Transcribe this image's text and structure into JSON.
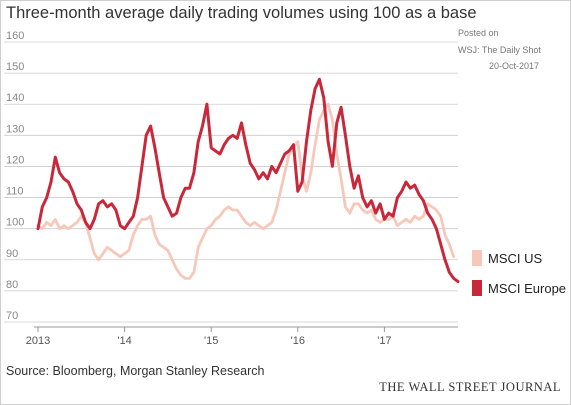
{
  "header": {
    "title": "Three-month average daily trading volumes using 100 as a base",
    "posted_on": "Posted on",
    "posted_source": "WSJ: The Daily Shot",
    "posted_date": "20-Oct-2017"
  },
  "footer": {
    "source": "Source: Bloomberg, Morgan Stanley Research",
    "publisher": "THE WALL STREET JOURNAL"
  },
  "colors": {
    "msci_us": "#f7c8b9",
    "msci_europe": "#c8283a",
    "grid": "#cccccc",
    "axis_text": "#888888"
  },
  "chart_data": {
    "type": "line",
    "title": "Three-month average daily trading volumes using 100 as a base",
    "xlabel": "",
    "ylabel": "",
    "xlim": [
      2013.0,
      2017.85
    ],
    "ylim": [
      70,
      160
    ],
    "yticks": [
      70,
      80,
      90,
      100,
      110,
      120,
      130,
      140,
      150,
      160
    ],
    "ytick_labels": [
      "70",
      "80",
      "90",
      "100",
      "110",
      "120",
      "130",
      "140",
      "150",
      "160"
    ],
    "xticks": [
      2013,
      2014,
      2015,
      2016,
      2017
    ],
    "xtick_labels": [
      "2013",
      "'14",
      "'15",
      "'16",
      "'17"
    ],
    "grid": true,
    "legend_position": "right",
    "series": [
      {
        "name": "MSCI US",
        "color": "#f7c8b9",
        "x": [
          2013.0,
          2013.05,
          2013.1,
          2013.15,
          2013.2,
          2013.25,
          2013.3,
          2013.35,
          2013.4,
          2013.45,
          2013.5,
          2013.55,
          2013.6,
          2013.65,
          2013.7,
          2013.75,
          2013.8,
          2013.85,
          2013.9,
          2013.95,
          2014.0,
          2014.05,
          2014.1,
          2014.15,
          2014.2,
          2014.25,
          2014.3,
          2014.35,
          2014.4,
          2014.45,
          2014.5,
          2014.55,
          2014.6,
          2014.65,
          2014.7,
          2014.75,
          2014.8,
          2014.85,
          2014.9,
          2014.95,
          2015.0,
          2015.05,
          2015.1,
          2015.15,
          2015.2,
          2015.25,
          2015.3,
          2015.35,
          2015.4,
          2015.45,
          2015.5,
          2015.55,
          2015.6,
          2015.65,
          2015.7,
          2015.75,
          2015.8,
          2015.85,
          2015.9,
          2015.95,
          2016.0,
          2016.05,
          2016.1,
          2016.15,
          2016.2,
          2016.25,
          2016.3,
          2016.35,
          2016.4,
          2016.45,
          2016.5,
          2016.55,
          2016.6,
          2016.65,
          2016.7,
          2016.75,
          2016.8,
          2016.85,
          2016.9,
          2016.95,
          2017.0,
          2017.05,
          2017.1,
          2017.15,
          2017.2,
          2017.25,
          2017.3,
          2017.35,
          2017.4,
          2017.45,
          2017.5,
          2017.55,
          2017.6,
          2017.65,
          2017.7,
          2017.75,
          2017.8
        ],
        "y": [
          101,
          100,
          102,
          101,
          103,
          100,
          101,
          100,
          101,
          102,
          104,
          102,
          97,
          92,
          90,
          92,
          94,
          93,
          92,
          91,
          92,
          93,
          98,
          101,
          103,
          103,
          104,
          98,
          95,
          94,
          93,
          90,
          87,
          85,
          84,
          84,
          86,
          94,
          97,
          100,
          101,
          103,
          104,
          106,
          107,
          106,
          106,
          104,
          102,
          101,
          102,
          101,
          100,
          101,
          102,
          106,
          112,
          118,
          124,
          126,
          128,
          117,
          112,
          118,
          127,
          135,
          138,
          140,
          135,
          124,
          116,
          107,
          105,
          108,
          108,
          106,
          105,
          106,
          103,
          102,
          103,
          103,
          104,
          101,
          102,
          103,
          102,
          104,
          103,
          104,
          108,
          107,
          106,
          104,
          98,
          95,
          91
        ]
      },
      {
        "name": "MSCI Europe",
        "color": "#c8283a",
        "x": [
          2013.0,
          2013.05,
          2013.1,
          2013.15,
          2013.2,
          2013.25,
          2013.3,
          2013.35,
          2013.4,
          2013.45,
          2013.5,
          2013.55,
          2013.6,
          2013.65,
          2013.7,
          2013.75,
          2013.8,
          2013.85,
          2013.9,
          2013.95,
          2014.0,
          2014.05,
          2014.1,
          2014.15,
          2014.2,
          2014.25,
          2014.3,
          2014.35,
          2014.4,
          2014.45,
          2014.5,
          2014.55,
          2014.6,
          2014.65,
          2014.7,
          2014.75,
          2014.8,
          2014.85,
          2014.9,
          2014.95,
          2015.0,
          2015.05,
          2015.1,
          2015.15,
          2015.2,
          2015.25,
          2015.3,
          2015.35,
          2015.4,
          2015.45,
          2015.5,
          2015.55,
          2015.6,
          2015.65,
          2015.7,
          2015.75,
          2015.8,
          2015.85,
          2015.9,
          2015.95,
          2016.0,
          2016.05,
          2016.1,
          2016.15,
          2016.2,
          2016.25,
          2016.3,
          2016.35,
          2016.4,
          2016.45,
          2016.5,
          2016.55,
          2016.6,
          2016.65,
          2016.7,
          2016.75,
          2016.8,
          2016.85,
          2016.9,
          2016.95,
          2017.0,
          2017.05,
          2017.1,
          2017.15,
          2017.2,
          2017.25,
          2017.3,
          2017.35,
          2017.4,
          2017.45,
          2017.5,
          2017.55,
          2017.6,
          2017.65,
          2017.7,
          2017.75,
          2017.8,
          2017.85
        ],
        "y": [
          100,
          107,
          110,
          115,
          123,
          118,
          116,
          115,
          112,
          108,
          106,
          102,
          100,
          103,
          108,
          109,
          107,
          108,
          106,
          101,
          100,
          102,
          104,
          110,
          120,
          130,
          133,
          126,
          118,
          110,
          107,
          104,
          105,
          110,
          113,
          113,
          118,
          128,
          133,
          140,
          126,
          125,
          124,
          127,
          129,
          130,
          129,
          134,
          127,
          121,
          119,
          116,
          118,
          116,
          120,
          118,
          121,
          124,
          125,
          127,
          112,
          115,
          128,
          138,
          145,
          148,
          142,
          128,
          120,
          134,
          139,
          130,
          120,
          113,
          117,
          110,
          107,
          109,
          105,
          108,
          103,
          105,
          104,
          110,
          112,
          115,
          113,
          114,
          111,
          109,
          105,
          103,
          100,
          95,
          90,
          86,
          84,
          83
        ]
      }
    ]
  }
}
